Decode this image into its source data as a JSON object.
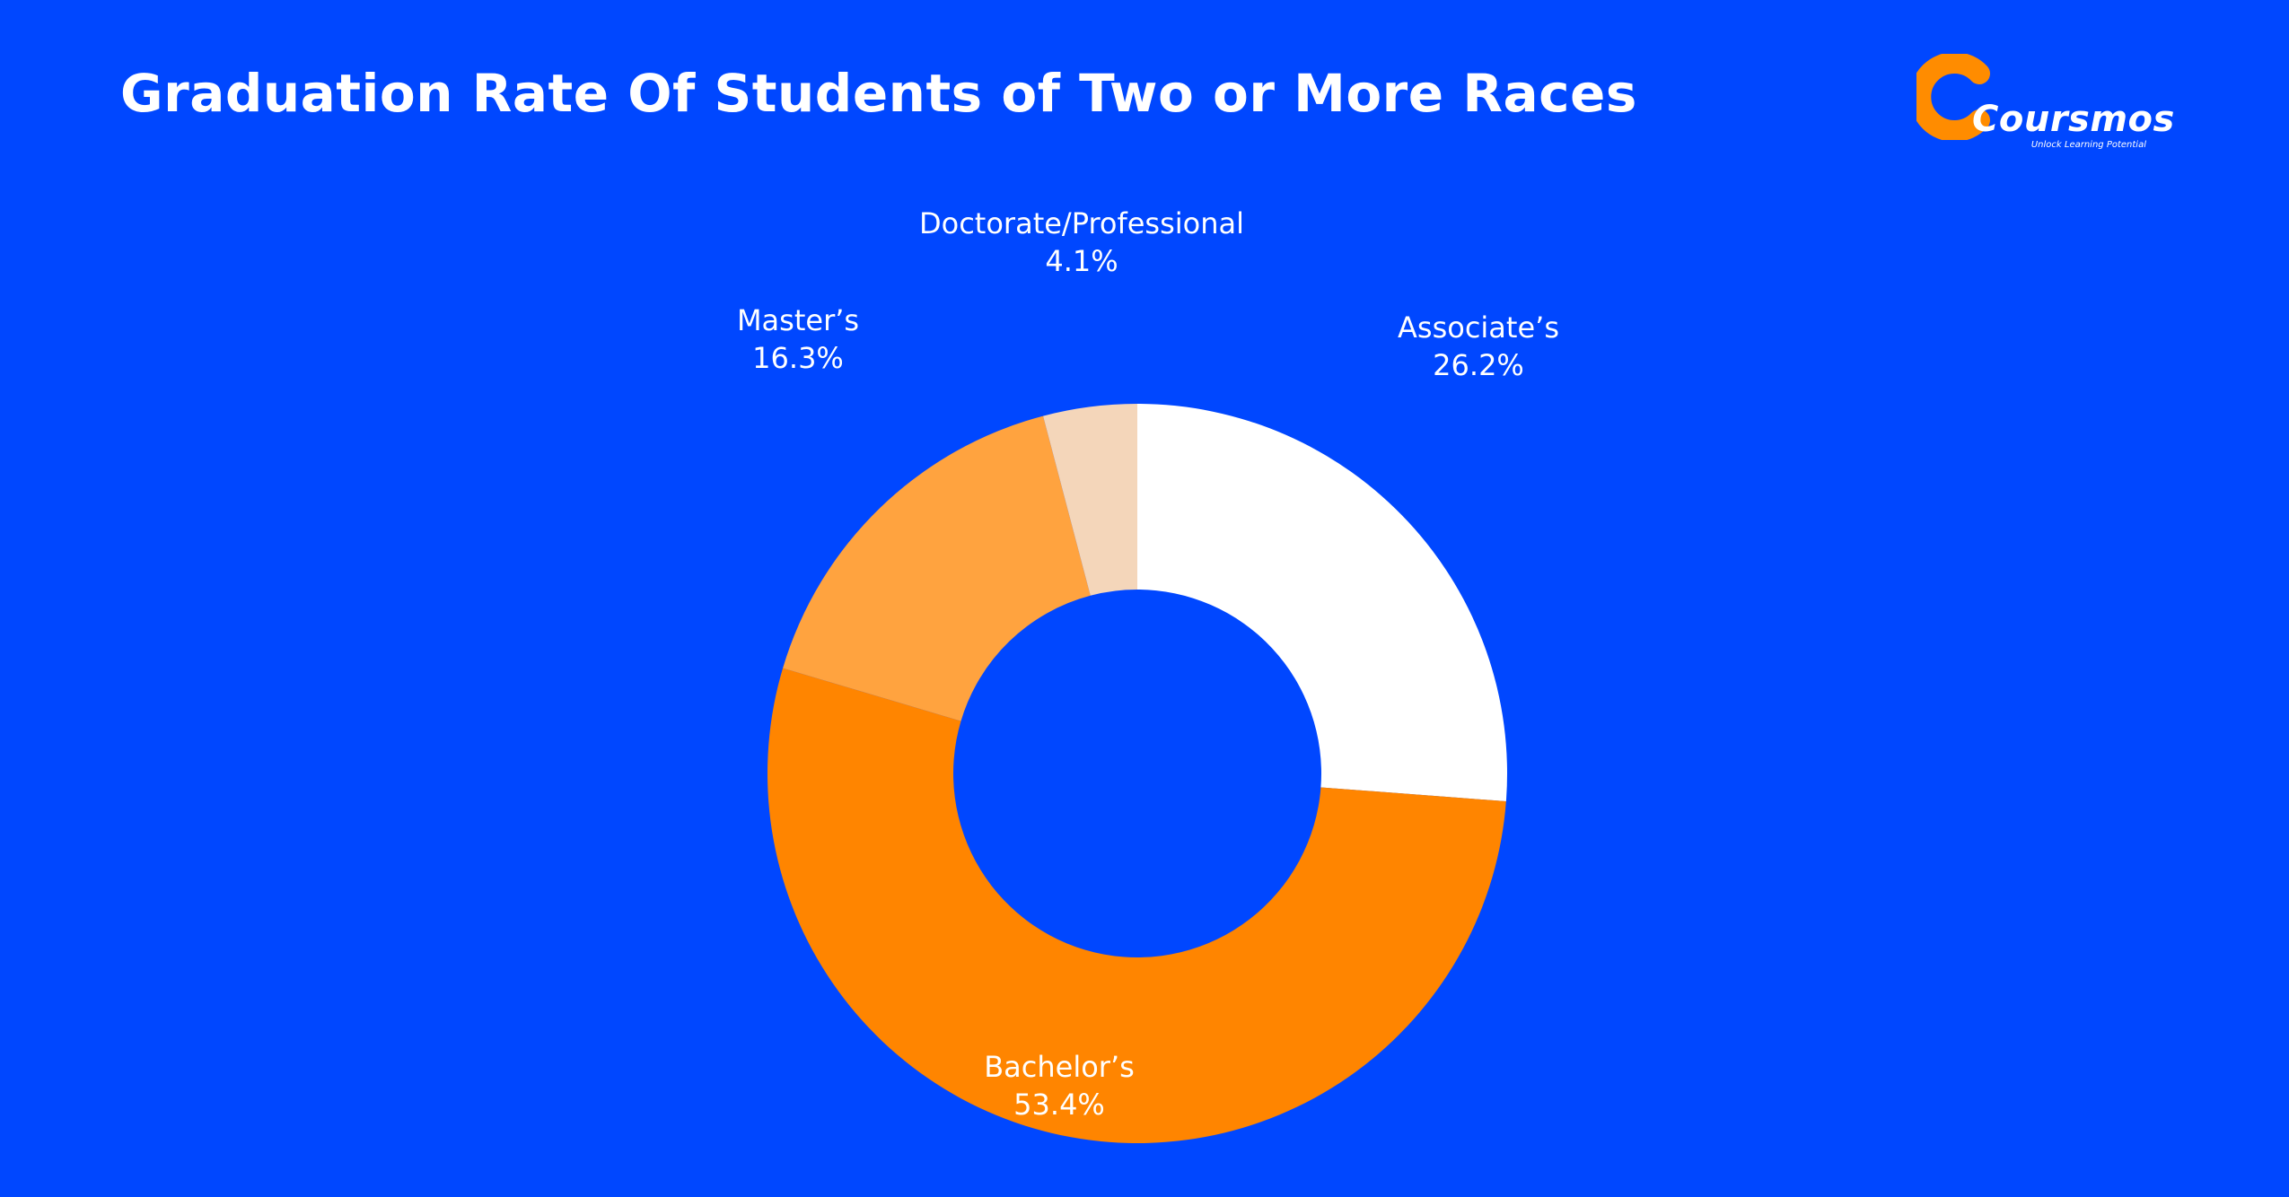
{
  "page": {
    "title": "Graduation Rate Of Students of Two or More Races"
  },
  "logo": {
    "name": "Coursmos",
    "tagline": "Unlock Learning Potential"
  },
  "colors": {
    "background": "#0047FF",
    "associates": "#FFFFFF",
    "bachelors": "#FF8500",
    "masters": "#FFA33F",
    "doctorate": "#F4D6BA",
    "brand": "#FF8C00"
  },
  "chart_data": {
    "type": "pie",
    "subtype": "donut",
    "title": "Graduation Rate Of Students of Two or More Races",
    "labels": [
      "Associate’s",
      "Bachelor’s",
      "Master’s",
      "Doctorate/Professional"
    ],
    "values": [
      26.2,
      53.4,
      16.3,
      4.1
    ],
    "value_labels": [
      "26.2%",
      "53.4%",
      "16.3%",
      "4.1%"
    ],
    "colors": [
      "#FFFFFF",
      "#FF8500",
      "#FFA33F",
      "#F4D6BA"
    ],
    "start": "12 o'clock",
    "direction": "clockwise"
  }
}
